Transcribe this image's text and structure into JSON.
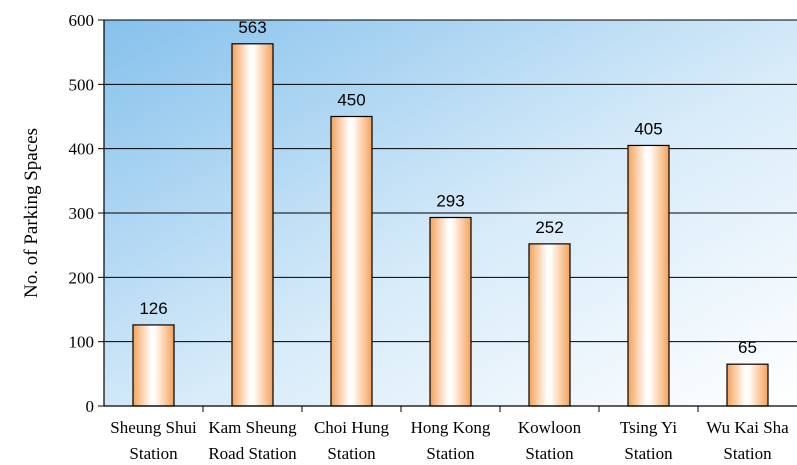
{
  "chart_data": {
    "type": "bar",
    "title": "",
    "xlabel": "",
    "ylabel": "No. of Parking Spaces",
    "ylim": [
      0,
      600
    ],
    "yticks": [
      "0",
      "100",
      "200",
      "300",
      "400",
      "500",
      "600"
    ],
    "categories": [
      [
        "Sheung Shui",
        "Station"
      ],
      [
        "Kam Sheung",
        "Road Station"
      ],
      [
        "Choi Hung",
        "Station"
      ],
      [
        "Hong Kong",
        "Station"
      ],
      [
        "Kowloon",
        "Station"
      ],
      [
        "Tsing Yi",
        "Station"
      ],
      [
        "Wu Kai Sha",
        "Station"
      ]
    ],
    "values": [
      126,
      563,
      450,
      293,
      252,
      405,
      65
    ],
    "grid": true,
    "colors": {
      "bar_edge": "#e06a10",
      "bar_mid": "#ffffff",
      "bar_side": "#f7a860",
      "bg_top_left": "#86c1ec",
      "bg_bottom_right": "#ffffff",
      "grid": "#000000"
    }
  }
}
